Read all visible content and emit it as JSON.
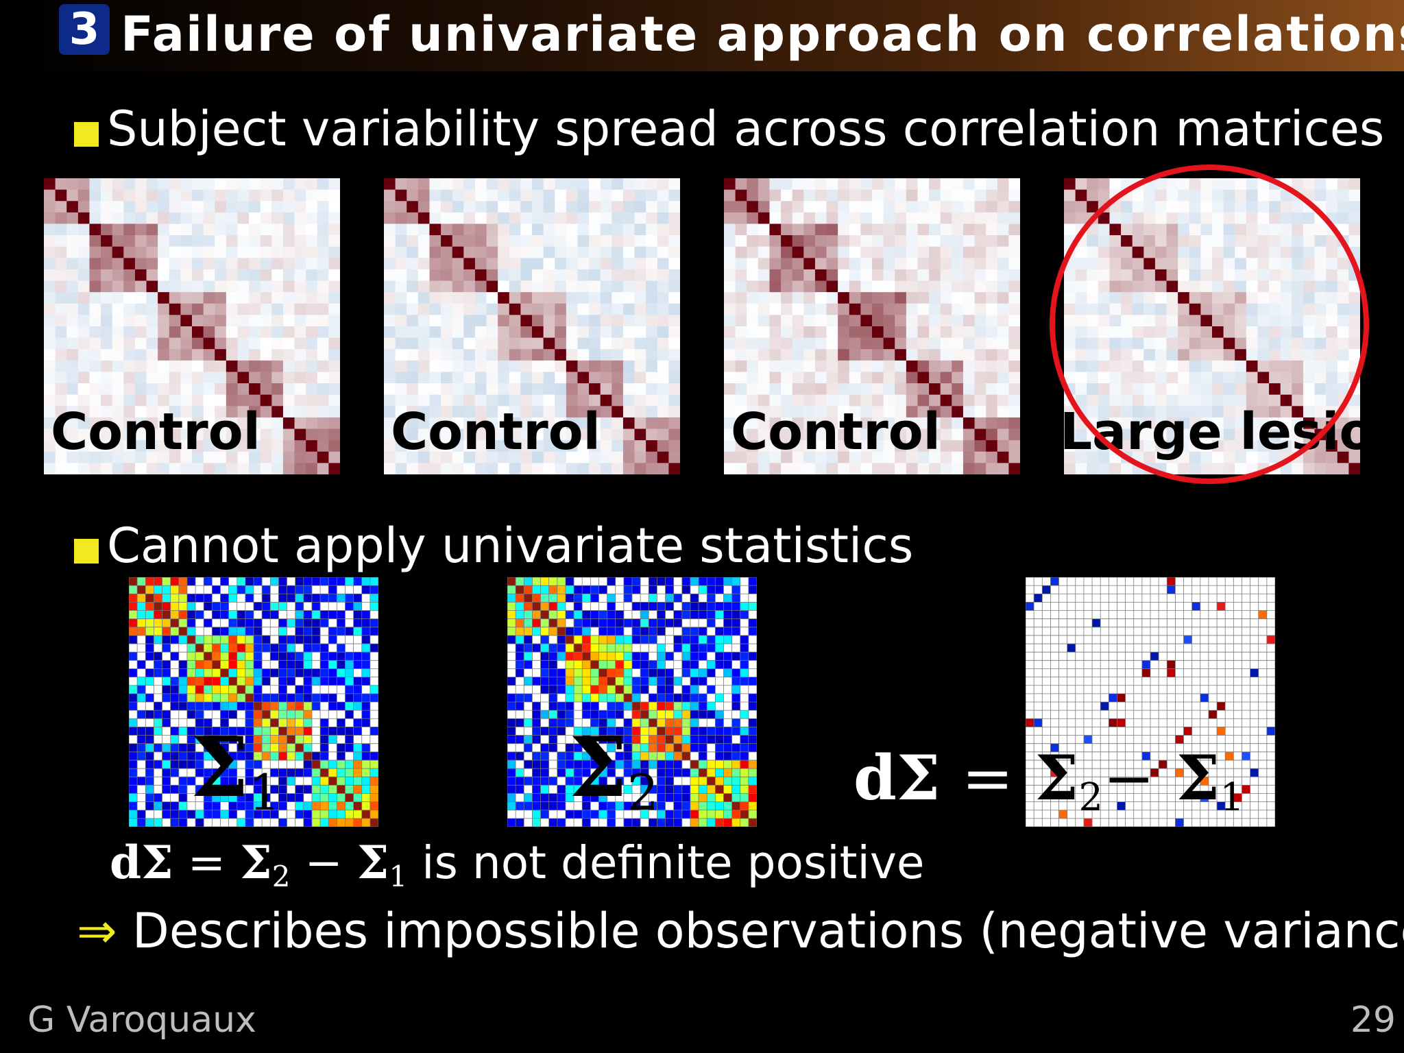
{
  "slide": {
    "section_number": "3",
    "title": "Failure of univariate approach on correlations",
    "bullet1": "Subject variability spread across correlation matrices",
    "bullet2": "Cannot apply univariate statistics",
    "panels": [
      {
        "label": "Control"
      },
      {
        "label": "Control"
      },
      {
        "label": "Control"
      },
      {
        "label": "Large lesion",
        "highlighted": true
      }
    ],
    "sigma1": {
      "symbol": "Σ",
      "sub": "1"
    },
    "sigma2": {
      "symbol": "Σ",
      "sub": "2"
    },
    "diff_equation": {
      "lhs": "dΣ",
      "eq": "=",
      "a": "Σ",
      "a_sub": "2",
      "minus": "−",
      "b": "Σ",
      "b_sub": "1"
    },
    "statement": {
      "lhs": "dΣ",
      "eq": "=",
      "a": "Σ",
      "a_sub": "2",
      "minus": "−",
      "b": "Σ",
      "b_sub": "1",
      "rest": "is not definite positive"
    },
    "conclusion": {
      "arrow": "⇒",
      "text": "Describes impossible observations (negative variance)"
    },
    "footer": {
      "author": "G Varoquaux",
      "page": "29"
    },
    "colors": {
      "bullet": "#f2ea1e",
      "section_badge": "#0d2a8a",
      "highlight_circle": "#e3141b"
    }
  }
}
